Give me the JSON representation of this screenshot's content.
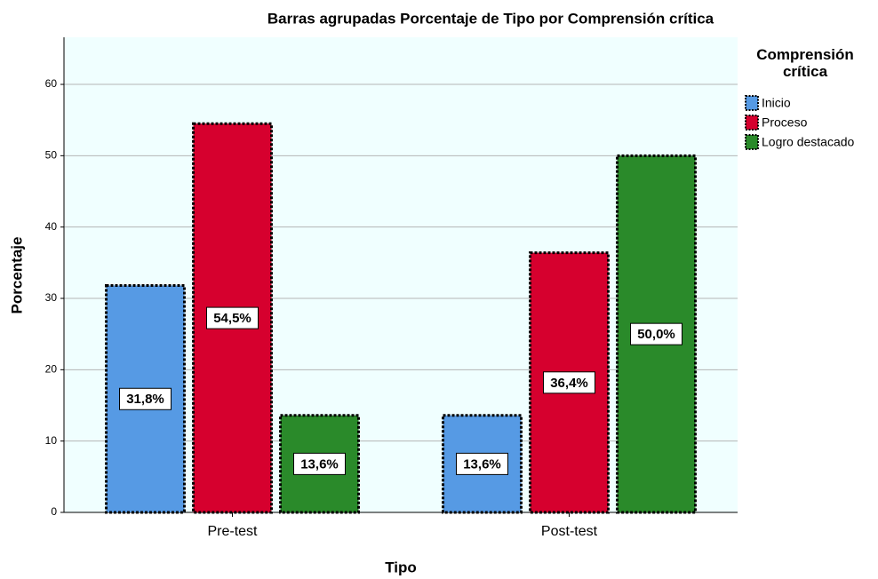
{
  "chart_data": {
    "type": "bar",
    "title": "Barras agrupadas Porcentaje de Tipo por Comprensión crítica",
    "x_label": "Tipo",
    "y_label": "Porcentaje",
    "legend_title": "Comprensión crítica",
    "categories": [
      "Pre-test",
      "Post-test"
    ],
    "series": [
      {
        "name": "Inicio",
        "color": "#569ae4",
        "values": [
          31.8,
          13.6
        ],
        "value_labels": [
          "31,8%",
          "13,6%"
        ]
      },
      {
        "name": "Proceso",
        "color": "#d6002e",
        "values": [
          54.5,
          36.4
        ],
        "value_labels": [
          "54,5%",
          "36,4%"
        ]
      },
      {
        "name": "Logro destacado",
        "color": "#2a8a2a",
        "values": [
          13.6,
          50.0
        ],
        "value_labels": [
          "13,6%",
          "50,0%"
        ]
      }
    ],
    "ylim": [
      0,
      66.6
    ],
    "yticks": [
      0,
      10,
      20,
      30,
      40,
      50,
      60
    ],
    "grid": true,
    "legend": "right"
  }
}
